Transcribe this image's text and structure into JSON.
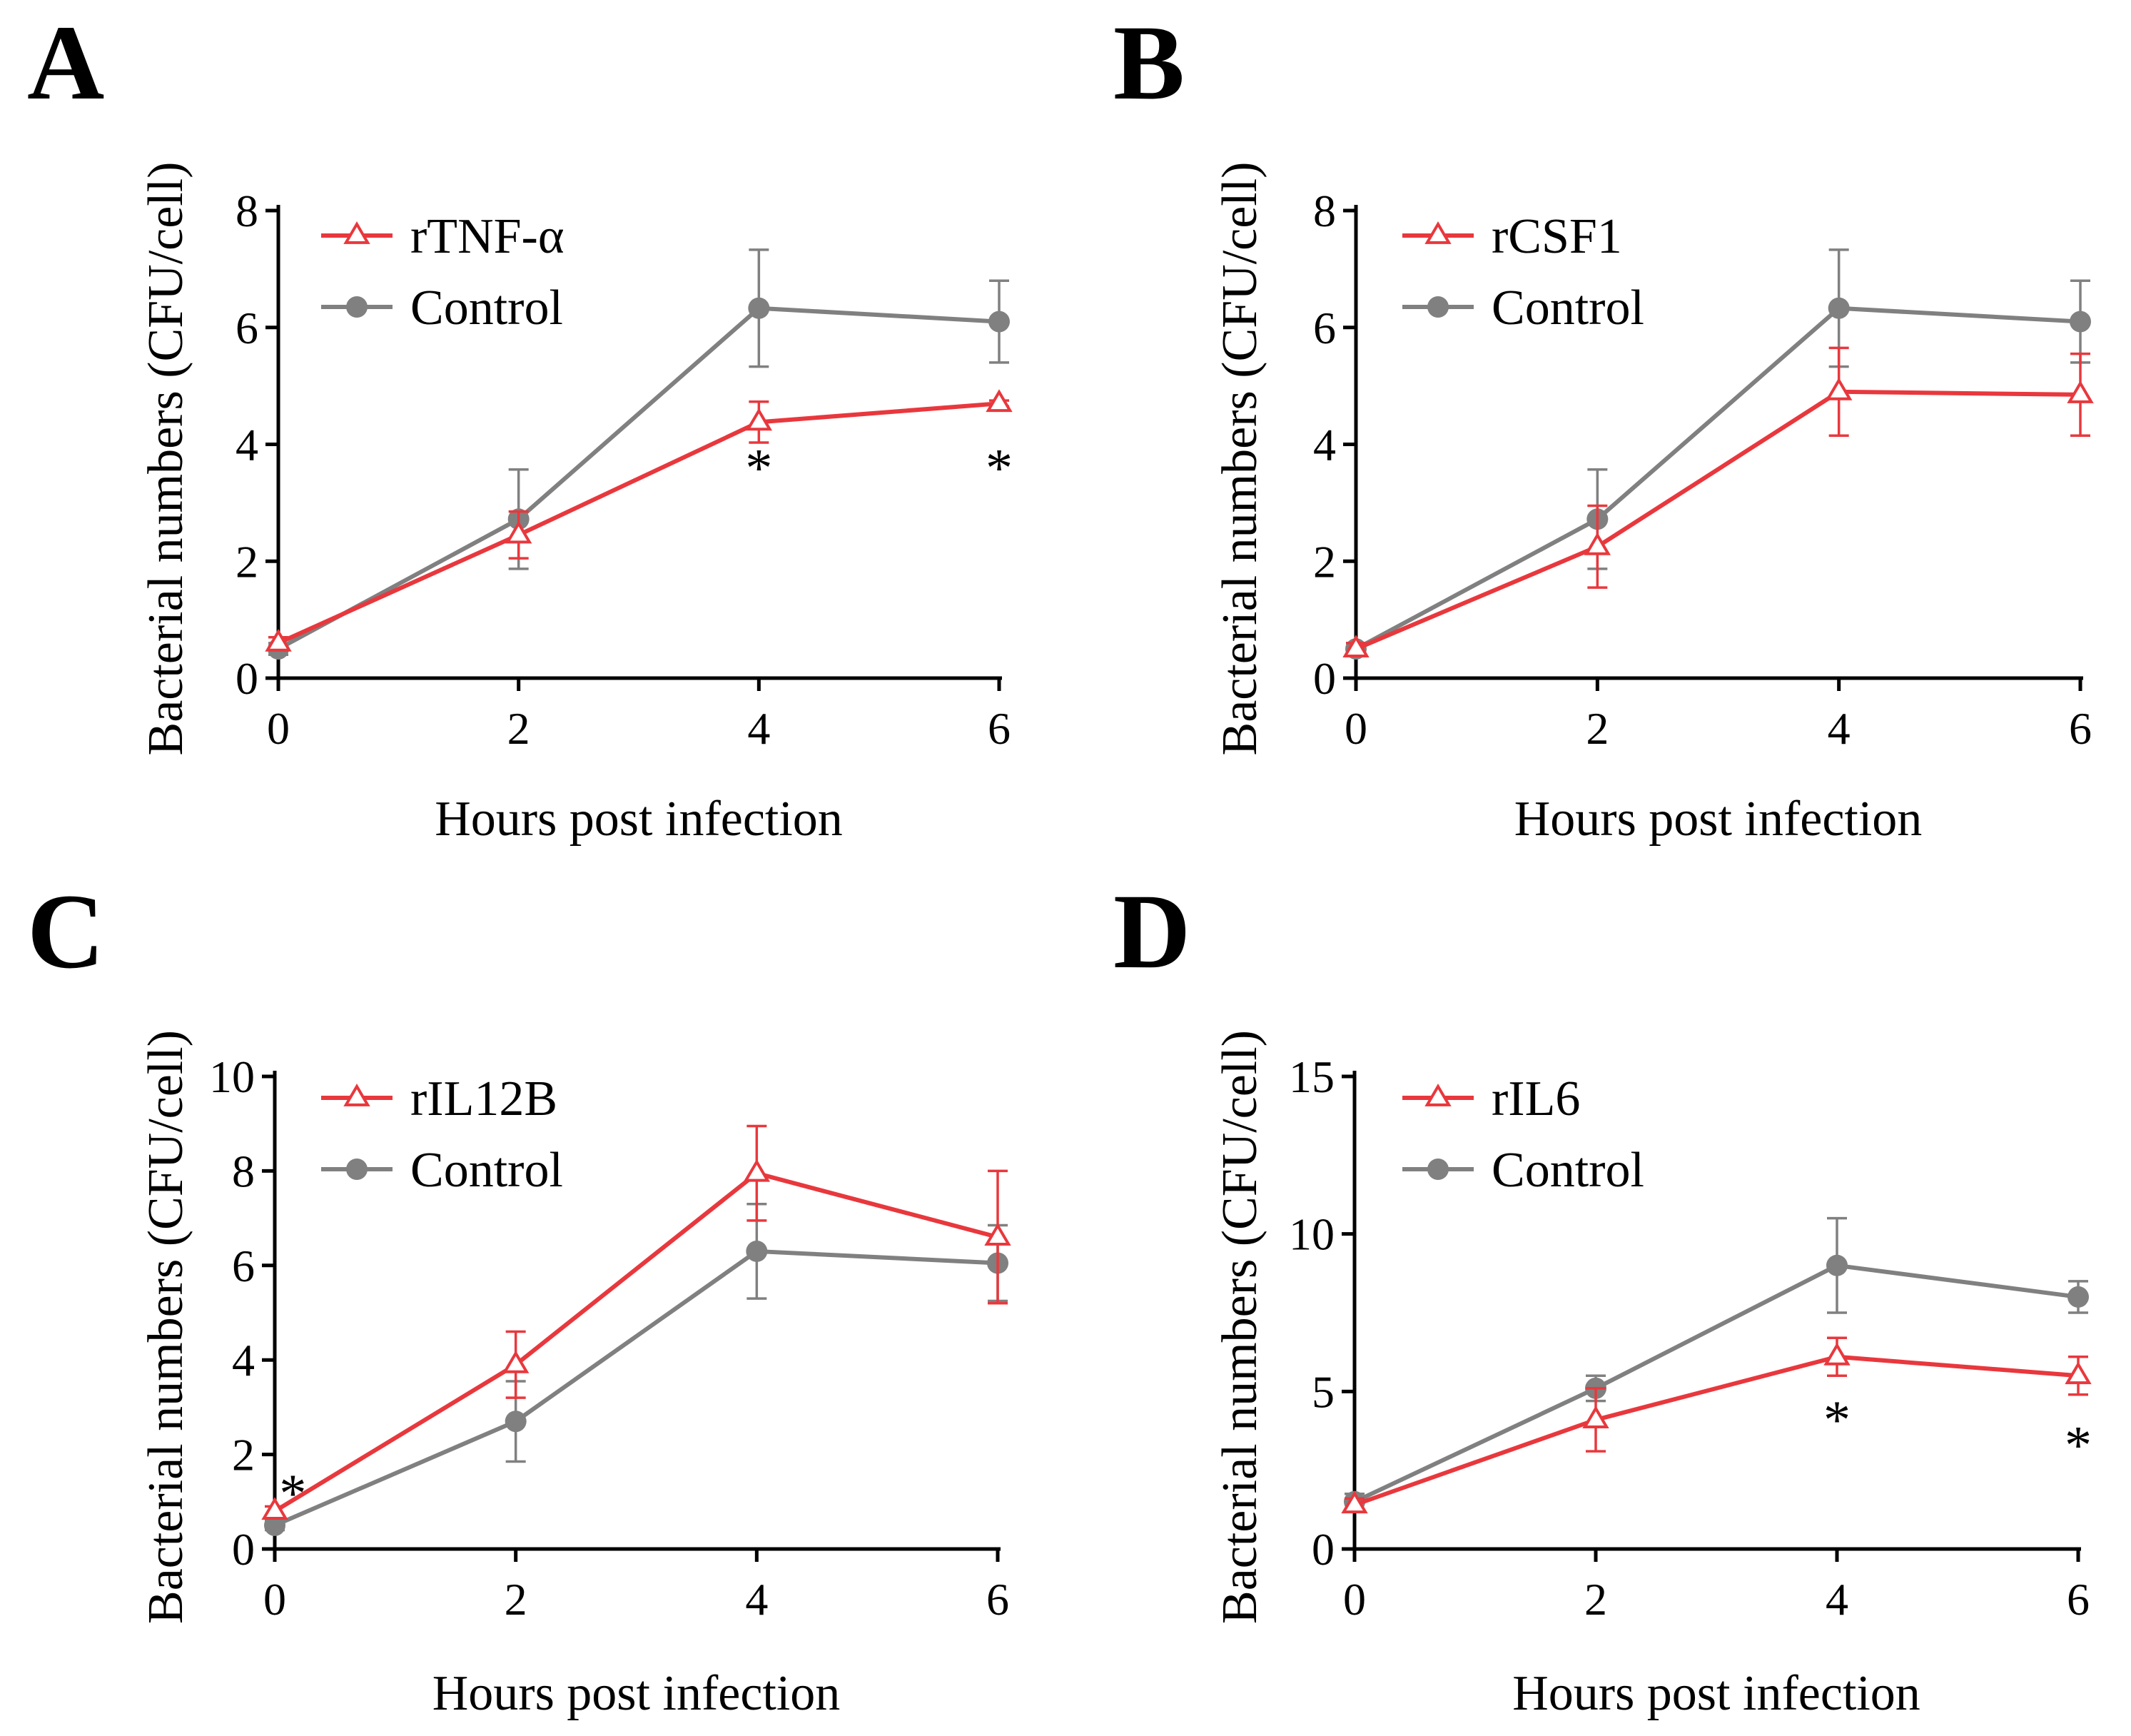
{
  "figure": {
    "xlabel": "Hours post infection",
    "ylabel": "Bacterial numbers (CFU/cell)",
    "colors": {
      "treatment": "#E8383D",
      "control": "#808080",
      "axis": "#000000"
    }
  },
  "chart_data": [
    {
      "panel": "A",
      "type": "line",
      "xlabel": "Hours post infection",
      "ylabel": "Bacterial numbers (CFU/cell)",
      "x": [
        0,
        2,
        4,
        6
      ],
      "xlim": [
        0,
        6
      ],
      "ylim": [
        0,
        8
      ],
      "yticks": [
        0,
        2,
        4,
        6,
        8
      ],
      "legend_position": "top-left",
      "series": [
        {
          "name": "rTNF-α",
          "role": "treatment",
          "marker": "open-triangle",
          "values": [
            0.6,
            2.45,
            4.38,
            4.7
          ],
          "errors": [
            0.1,
            0.4,
            0.35,
            0.05
          ]
        },
        {
          "name": "Control",
          "role": "control",
          "marker": "filled-circle",
          "values": [
            0.5,
            2.72,
            6.33,
            6.1
          ],
          "errors": [
            0.1,
            0.85,
            1.0,
            0.7
          ]
        }
      ],
      "significance": [
        {
          "x": 4,
          "y": 3.65,
          "label": "*"
        },
        {
          "x": 6,
          "y": 3.65,
          "label": "*"
        }
      ]
    },
    {
      "panel": "B",
      "type": "line",
      "xlabel": "Hours post infection",
      "ylabel": "Bacterial numbers (CFU/cell)",
      "x": [
        0,
        2,
        4,
        6
      ],
      "xlim": [
        0,
        6
      ],
      "ylim": [
        0,
        8
      ],
      "yticks": [
        0,
        2,
        4,
        6,
        8
      ],
      "legend_position": "top-left",
      "series": [
        {
          "name": "rCSF1",
          "role": "treatment",
          "marker": "open-triangle",
          "values": [
            0.5,
            2.25,
            4.9,
            4.85
          ],
          "errors": [
            0.1,
            0.7,
            0.75,
            0.7
          ]
        },
        {
          "name": "Control",
          "role": "control",
          "marker": "filled-circle",
          "values": [
            0.5,
            2.72,
            6.33,
            6.1
          ],
          "errors": [
            0.1,
            0.85,
            1.0,
            0.7
          ]
        }
      ],
      "significance": []
    },
    {
      "panel": "C",
      "type": "line",
      "xlabel": "Hours post infection",
      "ylabel": "Bacterial numbers (CFU/cell)",
      "x": [
        0,
        2,
        4,
        6
      ],
      "xlim": [
        0,
        6
      ],
      "ylim": [
        0,
        10
      ],
      "yticks": [
        0,
        2,
        4,
        6,
        8,
        10
      ],
      "legend_position": "top-left",
      "series": [
        {
          "name": "rIL12B",
          "role": "treatment",
          "marker": "open-triangle",
          "values": [
            0.8,
            3.9,
            7.95,
            6.6
          ],
          "errors": [
            0.1,
            0.7,
            1.0,
            1.4
          ]
        },
        {
          "name": "Control",
          "role": "control",
          "marker": "filled-circle",
          "values": [
            0.5,
            2.7,
            6.3,
            6.05
          ],
          "errors": [
            0.1,
            0.85,
            1.0,
            0.8
          ]
        }
      ],
      "significance": [
        {
          "x": 0.15,
          "y": 1.25,
          "label": "*"
        }
      ]
    },
    {
      "panel": "D",
      "type": "line",
      "xlabel": "Hours post infection",
      "ylabel": "Bacterial numbers (CFU/cell)",
      "x": [
        0,
        2,
        4,
        6
      ],
      "xlim": [
        0,
        6
      ],
      "ylim": [
        0,
        15
      ],
      "yticks": [
        0,
        5,
        10,
        15
      ],
      "legend_position": "top-left",
      "series": [
        {
          "name": "rIL6",
          "role": "treatment",
          "marker": "open-triangle",
          "values": [
            1.4,
            4.1,
            6.1,
            5.5
          ],
          "errors": [
            0.2,
            1.0,
            0.6,
            0.6
          ]
        },
        {
          "name": "Control",
          "role": "control",
          "marker": "filled-circle",
          "values": [
            1.5,
            5.1,
            9.0,
            8.0
          ],
          "errors": [
            0.25,
            0.4,
            1.5,
            0.5
          ]
        }
      ],
      "significance": [
        {
          "x": 4,
          "y": 4.2,
          "label": "*"
        },
        {
          "x": 6,
          "y": 3.4,
          "label": "*"
        }
      ]
    }
  ]
}
